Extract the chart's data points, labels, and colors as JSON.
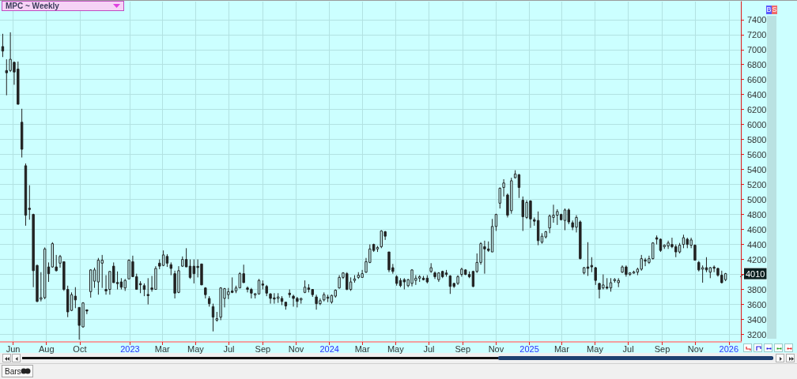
{
  "chart_data": {
    "type": "candlestick",
    "title": "MPC ~ Weekly",
    "color": "#222222",
    "grid": true,
    "xlim": [
      "2022-05-08",
      "2026-01-23"
    ],
    "ylim": [
      3100,
      7640
    ],
    "xticks": [
      {
        "value": "2022-06-01",
        "label": "Jun"
      },
      {
        "value": "2022-08-01",
        "label": "Aug"
      },
      {
        "value": "2022-10-01",
        "label": "Oct"
      },
      {
        "value": "2023-01-01",
        "label": "2023"
      },
      {
        "value": "2023-03-01",
        "label": "Mar"
      },
      {
        "value": "2023-05-01",
        "label": "May"
      },
      {
        "value": "2023-07-01",
        "label": "Jul"
      },
      {
        "value": "2023-09-01",
        "label": "Sep"
      },
      {
        "value": "2023-11-01",
        "label": "Nov"
      },
      {
        "value": "2024-01-01",
        "label": "2024"
      },
      {
        "value": "2024-03-01",
        "label": "Mar"
      },
      {
        "value": "2024-05-01",
        "label": "May"
      },
      {
        "value": "2024-07-01",
        "label": "Jul"
      },
      {
        "value": "2024-09-01",
        "label": "Sep"
      },
      {
        "value": "2024-11-01",
        "label": "Nov"
      },
      {
        "value": "2025-01-01",
        "label": "2025"
      },
      {
        "value": "2025-03-01",
        "label": "Mar"
      },
      {
        "value": "2025-05-01",
        "label": "May"
      },
      {
        "value": "2025-07-01",
        "label": "Jul"
      },
      {
        "value": "2025-09-01",
        "label": "Sep"
      },
      {
        "value": "2025-11-01",
        "label": "Nov"
      },
      {
        "value": "2026-01-01",
        "label": "2026"
      }
    ],
    "yticks": [
      3200,
      3400,
      3600,
      3800,
      {
        "value": 4000,
        "label": null
      },
      4200,
      4400,
      4600,
      4800,
      5000,
      5200,
      5400,
      5600,
      5800,
      6000,
      6200,
      6400,
      6600,
      6800,
      7000,
      7200,
      7400
    ],
    "annotations": [
      {
        "text": "4010",
        "x": "2025-12-26",
        "y": 4010
      },
      "B",
      "S",
      "Bars"
    ],
    "x": [
      "2022-05-13",
      "2022-05-20",
      "2022-05-27",
      "2022-06-03",
      "2022-06-10",
      "2022-06-17",
      "2022-06-24",
      "2022-07-01",
      "2022-07-08",
      "2022-07-15",
      "2022-07-22",
      "2022-07-29",
      "2022-08-05",
      "2022-08-12",
      "2022-08-19",
      "2022-08-26",
      "2022-09-02",
      "2022-09-09",
      "2022-09-16",
      "2022-09-23",
      "2022-09-30",
      "2022-10-07",
      "2022-10-14",
      "2022-10-21",
      "2022-10-28",
      "2022-11-04",
      "2022-11-11",
      "2022-11-18",
      "2022-11-25",
      "2022-12-02",
      "2022-12-09",
      "2022-12-16",
      "2022-12-23",
      "2022-12-30",
      "2023-01-06",
      "2023-01-13",
      "2023-01-20",
      "2023-01-27",
      "2023-02-03",
      "2023-02-10",
      "2023-02-17",
      "2023-02-24",
      "2023-03-03",
      "2023-03-10",
      "2023-03-17",
      "2023-03-24",
      "2023-03-31",
      "2023-04-07",
      "2023-04-14",
      "2023-04-21",
      "2023-04-28",
      "2023-05-05",
      "2023-05-12",
      "2023-05-19",
      "2023-05-26",
      "2023-06-02",
      "2023-06-09",
      "2023-06-16",
      "2023-06-23",
      "2023-06-30",
      "2023-07-07",
      "2023-07-14",
      "2023-07-21",
      "2023-07-28",
      "2023-08-04",
      "2023-08-11",
      "2023-08-18",
      "2023-08-25",
      "2023-09-01",
      "2023-09-08",
      "2023-09-15",
      "2023-09-22",
      "2023-09-29",
      "2023-10-06",
      "2023-10-13",
      "2023-10-20",
      "2023-10-27",
      "2023-11-03",
      "2023-11-10",
      "2023-11-17",
      "2023-11-24",
      "2023-12-01",
      "2023-12-08",
      "2023-12-15",
      "2023-12-22",
      "2023-12-29",
      "2024-01-05",
      "2024-01-12",
      "2024-01-19",
      "2024-01-26",
      "2024-02-02",
      "2024-02-09",
      "2024-02-16",
      "2024-02-23",
      "2024-03-01",
      "2024-03-08",
      "2024-03-15",
      "2024-03-22",
      "2024-03-29",
      "2024-04-05",
      "2024-04-12",
      "2024-04-19",
      "2024-04-26",
      "2024-05-03",
      "2024-05-10",
      "2024-05-17",
      "2024-05-24",
      "2024-05-31",
      "2024-06-07",
      "2024-06-14",
      "2024-06-21",
      "2024-06-28",
      "2024-07-05",
      "2024-07-12",
      "2024-07-19",
      "2024-07-26",
      "2024-08-02",
      "2024-08-09",
      "2024-08-16",
      "2024-08-23",
      "2024-08-30",
      "2024-09-06",
      "2024-09-13",
      "2024-09-20",
      "2024-09-27",
      "2024-10-04",
      "2024-10-11",
      "2024-10-18",
      "2024-10-25",
      "2024-11-01",
      "2024-11-08",
      "2024-11-15",
      "2024-11-22",
      "2024-11-29",
      "2024-12-06",
      "2024-12-13",
      "2024-12-20",
      "2024-12-27",
      "2025-01-03",
      "2025-01-10",
      "2025-01-17",
      "2025-01-24",
      "2025-01-31",
      "2025-02-07",
      "2025-02-14",
      "2025-02-21",
      "2025-02-28",
      "2025-03-07",
      "2025-03-14",
      "2025-03-21",
      "2025-03-28",
      "2025-04-04",
      "2025-04-11",
      "2025-04-18",
      "2025-04-25",
      "2025-05-02",
      "2025-05-09",
      "2025-05-16",
      "2025-05-23",
      "2025-05-30",
      "2025-06-06",
      "2025-06-13",
      "2025-06-20",
      "2025-06-27",
      "2025-07-04",
      "2025-07-11",
      "2025-07-18",
      "2025-07-25",
      "2025-08-01",
      "2025-08-08",
      "2025-08-15",
      "2025-08-22",
      "2025-08-29",
      "2025-09-05",
      "2025-09-12",
      "2025-09-19",
      "2025-09-26",
      "2025-10-03",
      "2025-10-10",
      "2025-10-17",
      "2025-10-24",
      "2025-10-31",
      "2025-11-07",
      "2025-11-14",
      "2025-11-21",
      "2025-11-28",
      "2025-12-05",
      "2025-12-12",
      "2025-12-19",
      "2025-12-26"
    ],
    "ohlc": [
      [
        7040,
        7210,
        6900,
        6980
      ],
      [
        6720,
        6870,
        6390,
        6690
      ],
      [
        6720,
        7230,
        6700,
        6870
      ],
      [
        6830,
        6840,
        6530,
        6700
      ],
      [
        6740,
        6840,
        6270,
        6270
      ],
      [
        6030,
        6210,
        5560,
        5670
      ],
      [
        5450,
        5480,
        4650,
        4790
      ],
      [
        4880,
        5190,
        4730,
        4870
      ],
      [
        4800,
        4810,
        3830,
        4050
      ],
      [
        4120,
        4130,
        3630,
        3640
      ],
      [
        3670,
        4030,
        3640,
        3690
      ],
      [
        3690,
        4360,
        3670,
        4340
      ],
      [
        4100,
        4160,
        3900,
        4010
      ],
      [
        4100,
        4430,
        4090,
        4410
      ],
      [
        4100,
        4260,
        4040,
        4050
      ],
      [
        4150,
        4260,
        4090,
        4240
      ],
      [
        4170,
        4170,
        3780,
        3800
      ],
      [
        3800,
        3850,
        3430,
        3500
      ],
      [
        3520,
        3760,
        3510,
        3730
      ],
      [
        3710,
        3830,
        3550,
        3660
      ],
      [
        3560,
        3560,
        3130,
        3320
      ],
      [
        3300,
        3630,
        3290,
        3620
      ],
      [
        3520,
        3520,
        3470,
        3520
      ],
      [
        3770,
        4070,
        3690,
        4060
      ],
      [
        3910,
        4090,
        3820,
        4060
      ],
      [
        3900,
        4220,
        3730,
        4190
      ],
      [
        4150,
        4260,
        3820,
        4190
      ],
      [
        3800,
        3990,
        3730,
        3780
      ],
      [
        3800,
        4040,
        3730,
        4040
      ],
      [
        4110,
        4160,
        3890,
        3890
      ],
      [
        3890,
        4040,
        3800,
        3880
      ],
      [
        3900,
        3950,
        3800,
        3830
      ],
      [
        3820,
        3940,
        3780,
        3920
      ],
      [
        3940,
        4200,
        3940,
        4190
      ],
      [
        4170,
        4250,
        3970,
        3970
      ],
      [
        3970,
        4010,
        3800,
        3800
      ],
      [
        3870,
        3910,
        3750,
        3870
      ],
      [
        3850,
        3880,
        3710,
        3800
      ],
      [
        3730,
        3950,
        3600,
        3720
      ],
      [
        3820,
        3980,
        3770,
        3800
      ],
      [
        3800,
        4110,
        3800,
        4080
      ],
      [
        4150,
        4200,
        4070,
        4110
      ],
      [
        4120,
        4320,
        4110,
        4260
      ],
      [
        4240,
        4270,
        4100,
        4150
      ],
      [
        4130,
        4160,
        3990,
        4080
      ],
      [
        4010,
        4050,
        3680,
        3750
      ],
      [
        3760,
        4110,
        3750,
        4050
      ],
      [
        4110,
        4240,
        4100,
        4200
      ],
      [
        4200,
        4350,
        4100,
        4100
      ],
      [
        4110,
        4200,
        3940,
        3960
      ],
      [
        4110,
        4200,
        3880,
        4010
      ],
      [
        4100,
        4200,
        3960,
        4100
      ],
      [
        4140,
        4140,
        3860,
        3860
      ],
      [
        3820,
        3830,
        3680,
        3730
      ],
      [
        3680,
        3710,
        3570,
        3610
      ],
      [
        3570,
        3610,
        3240,
        3430
      ],
      [
        3390,
        3500,
        3370,
        3410
      ],
      [
        3430,
        3830,
        3390,
        3820
      ],
      [
        3680,
        3820,
        3560,
        3810
      ],
      [
        3730,
        3820,
        3670,
        3770
      ],
      [
        3780,
        3960,
        3750,
        3760
      ],
      [
        3780,
        3850,
        3750,
        3820
      ],
      [
        3820,
        4030,
        3820,
        4010
      ],
      [
        4010,
        4130,
        3890,
        3890
      ],
      [
        3820,
        3840,
        3760,
        3800
      ],
      [
        3800,
        3820,
        3680,
        3750
      ],
      [
        3730,
        3750,
        3680,
        3740
      ],
      [
        3740,
        3940,
        3730,
        3920
      ],
      [
        3870,
        3920,
        3800,
        3860
      ],
      [
        3840,
        3860,
        3710,
        3750
      ],
      [
        3740,
        3750,
        3610,
        3680
      ],
      [
        3680,
        3750,
        3610,
        3680
      ],
      [
        3680,
        3750,
        3620,
        3700
      ],
      [
        3680,
        3710,
        3590,
        3640
      ],
      [
        3630,
        3630,
        3530,
        3580
      ],
      [
        3750,
        3800,
        3690,
        3730
      ],
      [
        3710,
        3730,
        3570,
        3680
      ],
      [
        3680,
        3700,
        3560,
        3640
      ],
      [
        3660,
        3690,
        3610,
        3680
      ],
      [
        3760,
        3920,
        3750,
        3830
      ],
      [
        3820,
        3870,
        3760,
        3800
      ],
      [
        3800,
        3800,
        3700,
        3730
      ],
      [
        3700,
        3730,
        3530,
        3610
      ],
      [
        3610,
        3680,
        3590,
        3650
      ],
      [
        3660,
        3760,
        3640,
        3730
      ],
      [
        3690,
        3730,
        3630,
        3690
      ],
      [
        3630,
        3730,
        3610,
        3720
      ],
      [
        3710,
        3800,
        3690,
        3790
      ],
      [
        3820,
        3990,
        3810,
        3960
      ],
      [
        3960,
        4030,
        3940,
        4020
      ],
      [
        4010,
        4030,
        3790,
        3800
      ],
      [
        3800,
        3960,
        3780,
        3900
      ],
      [
        3920,
        3990,
        3890,
        3940
      ],
      [
        3960,
        4030,
        3940,
        3990
      ],
      [
        3960,
        4060,
        3960,
        4010
      ],
      [
        4030,
        4220,
        4020,
        4170
      ],
      [
        4160,
        4400,
        4150,
        4340
      ],
      [
        4400,
        4410,
        4300,
        4320
      ],
      [
        4340,
        4380,
        4300,
        4360
      ],
      [
        4370,
        4590,
        4350,
        4580
      ],
      [
        4570,
        4580,
        4460,
        4510
      ],
      [
        4300,
        4300,
        4030,
        4060
      ],
      [
        4090,
        4140,
        4010,
        4040
      ],
      [
        3970,
        3990,
        3850,
        3880
      ],
      [
        3920,
        3950,
        3830,
        3850
      ],
      [
        3930,
        3950,
        3800,
        3900
      ],
      [
        3850,
        3940,
        3830,
        3930
      ],
      [
        3880,
        4070,
        3840,
        4060
      ],
      [
        3920,
        3990,
        3860,
        3950
      ],
      [
        3950,
        3990,
        3900,
        3970
      ],
      [
        3950,
        3980,
        3920,
        3930
      ],
      [
        3950,
        3990,
        3880,
        3900
      ],
      [
        4040,
        4150,
        4020,
        4090
      ],
      [
        4020,
        4040,
        3940,
        3970
      ],
      [
        3930,
        4030,
        3900,
        4020
      ],
      [
        4040,
        4050,
        3950,
        3970
      ],
      [
        4020,
        4060,
        3970,
        4000
      ],
      [
        3980,
        3990,
        3740,
        3840
      ],
      [
        3880,
        3890,
        3820,
        3840
      ],
      [
        3880,
        3990,
        3860,
        3970
      ],
      [
        4000,
        4090,
        3970,
        4070
      ],
      [
        4060,
        4070,
        3990,
        4000
      ],
      [
        4000,
        4040,
        3950,
        3970
      ],
      [
        4040,
        4050,
        3830,
        3840
      ],
      [
        4040,
        4280,
        4020,
        4160
      ],
      [
        4160,
        4430,
        4130,
        4410
      ],
      [
        4370,
        4450,
        4010,
        4340
      ],
      [
        4340,
        4440,
        4300,
        4320
      ],
      [
        4300,
        4740,
        4300,
        4640
      ],
      [
        4640,
        4810,
        4580,
        4800
      ],
      [
        4950,
        5160,
        4880,
        5150
      ],
      [
        5160,
        5270,
        5040,
        5220
      ],
      [
        5060,
        5080,
        4760,
        4790
      ],
      [
        4850,
        5290,
        4810,
        5250
      ],
      [
        5290,
        5390,
        5280,
        5340
      ],
      [
        5330,
        5340,
        5020,
        5160
      ],
      [
        4990,
        5040,
        4580,
        4770
      ],
      [
        4760,
        4990,
        4740,
        4960
      ],
      [
        4980,
        4990,
        4620,
        4740
      ],
      [
        4730,
        4760,
        4650,
        4710
      ],
      [
        4720,
        4840,
        4390,
        4450
      ],
      [
        4430,
        4550,
        4410,
        4510
      ],
      [
        4500,
        4580,
        4480,
        4570
      ],
      [
        4620,
        4800,
        4550,
        4780
      ],
      [
        4760,
        4930,
        4690,
        4790
      ],
      [
        4790,
        4870,
        4660,
        4840
      ],
      [
        4800,
        4810,
        4720,
        4730
      ],
      [
        4720,
        4880,
        4590,
        4860
      ],
      [
        4860,
        4880,
        4670,
        4700
      ],
      [
        4690,
        4720,
        4590,
        4630
      ],
      [
        4630,
        4790,
        4560,
        4760
      ],
      [
        4700,
        4720,
        4200,
        4210
      ],
      [
        4020,
        4100,
        4000,
        4090
      ],
      [
        4100,
        4430,
        3980,
        4080
      ],
      [
        4120,
        4230,
        4030,
        4100
      ],
      [
        4090,
        4100,
        3860,
        3920
      ],
      [
        3880,
        3890,
        3680,
        3800
      ],
      [
        3820,
        4000,
        3800,
        3860
      ],
      [
        3830,
        3950,
        3800,
        3820
      ],
      [
        3820,
        3950,
        3770,
        3890
      ],
      [
        3920,
        3950,
        3890,
        3930
      ],
      [
        3890,
        3950,
        3830,
        3920
      ],
      [
        4030,
        4120,
        4020,
        4100
      ],
      [
        4100,
        4120,
        3970,
        4000
      ],
      [
        4000,
        4030,
        3980,
        4020
      ],
      [
        4020,
        4050,
        4010,
        4030
      ],
      [
        4030,
        4090,
        3990,
        4070
      ],
      [
        4070,
        4260,
        4050,
        4210
      ],
      [
        4190,
        4220,
        4110,
        4180
      ],
      [
        4160,
        4250,
        4140,
        4210
      ],
      [
        4210,
        4430,
        4200,
        4420
      ],
      [
        4490,
        4520,
        4400,
        4470
      ],
      [
        4470,
        4480,
        4300,
        4320
      ],
      [
        4370,
        4400,
        4340,
        4390
      ],
      [
        4380,
        4450,
        4340,
        4420
      ],
      [
        4400,
        4490,
        4350,
        4370
      ],
      [
        4370,
        4400,
        4230,
        4300
      ],
      [
        4300,
        4420,
        4280,
        4390
      ],
      [
        4400,
        4530,
        4350,
        4490
      ],
      [
        4470,
        4490,
        4350,
        4400
      ],
      [
        4390,
        4490,
        4350,
        4460
      ],
      [
        4390,
        4400,
        4190,
        4190
      ],
      [
        4160,
        4180,
        4040,
        4060
      ],
      [
        4070,
        4120,
        3890,
        4090
      ],
      [
        4090,
        4230,
        4030,
        4060
      ],
      [
        4030,
        4100,
        3950,
        4090
      ],
      [
        4090,
        4120,
        4030,
        4090
      ],
      [
        4080,
        4090,
        3970,
        3990
      ],
      [
        3990,
        4050,
        3880,
        3890
      ],
      [
        3930,
        4020,
        3910,
        4010
      ]
    ]
  }
}
